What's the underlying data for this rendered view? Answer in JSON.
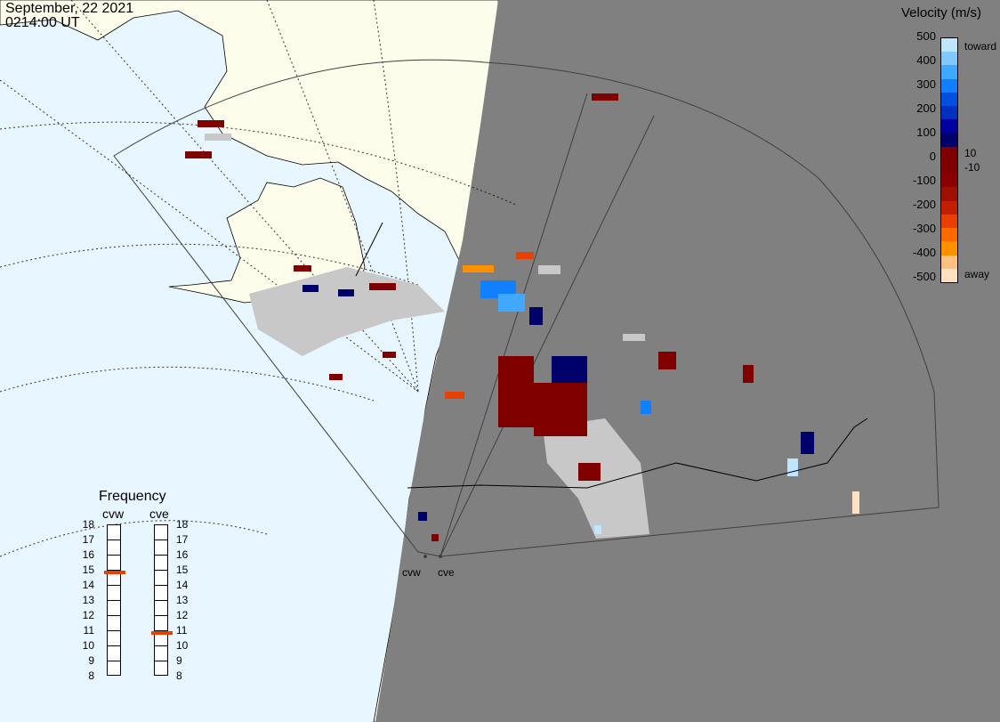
{
  "header": {
    "date": "September, 22 2021",
    "time": "0214:00 UT"
  },
  "colorbar": {
    "title": "Velocity (m/s)",
    "ticks": [
      "500",
      "400",
      "300",
      "200",
      "100",
      "0",
      "-100",
      "-200",
      "-300",
      "-400",
      "-500"
    ],
    "toward_label": "toward",
    "away_label": "away",
    "threshold_labels": [
      "10",
      "-10"
    ],
    "colors": [
      "#ffe0c0",
      "#ffc080",
      "#ff9000",
      "#ff6a00",
      "#e84000",
      "#c02000",
      "#a01000",
      "#8a0000",
      "#800000",
      "#800000",
      "#00006a",
      "#0000a0",
      "#0030c0",
      "#0050e0",
      "#1080ff",
      "#40a8ff",
      "#80c8ff",
      "#c0e6ff"
    ]
  },
  "frequency": {
    "title": "Frequency",
    "radars": [
      {
        "name": "cvw",
        "freq_mhz": 14.9
      },
      {
        "name": "cve",
        "freq_mhz": 10.9
      }
    ],
    "scale": [
      "18",
      "17",
      "16",
      "15",
      "14",
      "13",
      "12",
      "11",
      "10",
      "9",
      "8"
    ]
  },
  "sites": [
    {
      "name": "cvw"
    },
    {
      "name": "cve"
    }
  ],
  "palette": {
    "ocean": "#e8f6ff",
    "land": "#fdfdeb",
    "night": "#808080",
    "ground_scatter": "#c8c8c8"
  }
}
